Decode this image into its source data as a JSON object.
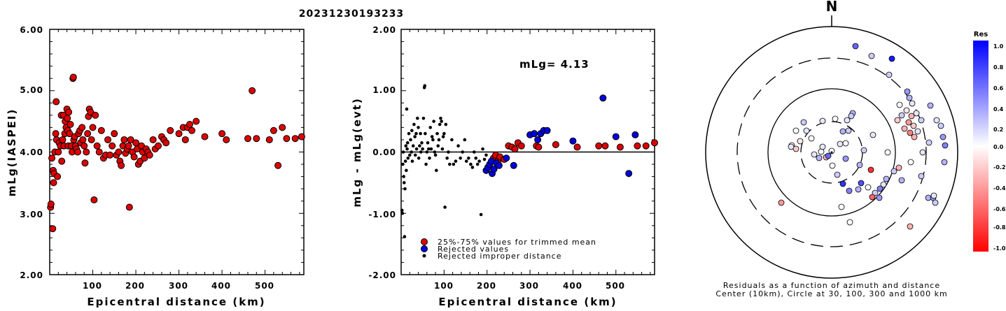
{
  "title": "20231230193233",
  "charts": {
    "left": {
      "type": "scatter",
      "ylabel": "mLg(IASPEI)",
      "xlabel": "Epicentral distance (km)",
      "xlim": [
        0,
        590
      ],
      "ylim": [
        2.0,
        6.0
      ],
      "xticks": [
        "100",
        "200",
        "300",
        "400",
        "500"
      ],
      "yticks": [
        "2.00",
        "3.00",
        "4.00",
        "5.00",
        "6.00"
      ]
    },
    "middle": {
      "type": "scatter",
      "ylabel": "mLg - mLg(evt)",
      "xlabel": "Epicentral distance (km)",
      "xlim": [
        0,
        590
      ],
      "ylim": [
        -2.0,
        2.0
      ],
      "xticks": [
        "100",
        "200",
        "300",
        "400",
        "500"
      ],
      "yticks": [
        "-2.00",
        "-1.00",
        "0.00",
        "1.00",
        "2.00"
      ],
      "annotation": "mLg= 4.13",
      "legend": [
        "25%-75% values for trimmed mean",
        "Rejected values",
        "Rejected improper distance"
      ]
    },
    "polar": {
      "north": "N",
      "caption1": "Residuals as a function of azimuth and distance",
      "caption2": "Center (10km), Circle at 30, 100, 300 and 1000 km"
    },
    "colorbar": {
      "title": "Res",
      "ticks": [
        "1.0",
        "0.8",
        "0.6",
        "0.4",
        "0.2",
        "0.0",
        "-0.2",
        "-0.4",
        "-0.6",
        "-0.8",
        "-1.0"
      ]
    }
  },
  "chart_data": [
    {
      "type": "scatter",
      "title": "20231230193233",
      "xlabel": "Epicentral distance (km)",
      "ylabel": "mLg(IASPEI)",
      "series": [
        {
          "name": "25%-75% values for trimmed mean",
          "color": "#dd0000",
          "points": [
            [
              2,
              3.1
            ],
            [
              3,
              3.15
            ],
            [
              5,
              3.9
            ],
            [
              7,
              2.75
            ],
            [
              8,
              3.7
            ],
            [
              9,
              3.5
            ],
            [
              10,
              3.65
            ],
            [
              12,
              4.0
            ],
            [
              14,
              4.3
            ],
            [
              15,
              4.82
            ],
            [
              16,
              4.2
            ],
            [
              18,
              3.6
            ],
            [
              20,
              4.0
            ],
            [
              22,
              4.15
            ],
            [
              25,
              4.1
            ],
            [
              27,
              4.6
            ],
            [
              28,
              3.85
            ],
            [
              30,
              4.2
            ],
            [
              32,
              4.6
            ],
            [
              33,
              4.1
            ],
            [
              35,
              4.3
            ],
            [
              36,
              4.5
            ],
            [
              38,
              4.4
            ],
            [
              40,
              4.7
            ],
            [
              41,
              4.55
            ],
            [
              42,
              4.35
            ],
            [
              43,
              4.1
            ],
            [
              44,
              4.65
            ],
            [
              46,
              4.3
            ],
            [
              48,
              4.45
            ],
            [
              50,
              4.1
            ],
            [
              52,
              4.0
            ],
            [
              54,
              5.2
            ],
            [
              55,
              5.22
            ],
            [
              56,
              4.2
            ],
            [
              58,
              4.25
            ],
            [
              60,
              4.1
            ],
            [
              62,
              4.05
            ],
            [
              65,
              4.0
            ],
            [
              67,
              4.3
            ],
            [
              70,
              4.35
            ],
            [
              72,
              4.15
            ],
            [
              75,
              4.4
            ],
            [
              77,
              4.2
            ],
            [
              80,
              4.1
            ],
            [
              82,
              3.82
            ],
            [
              85,
              4.0
            ],
            [
              88,
              4.3
            ],
            [
              90,
              4.58
            ],
            [
              92,
              4.7
            ],
            [
              95,
              4.65
            ],
            [
              97,
              4.2
            ],
            [
              100,
              4.4
            ],
            [
              103,
              3.22
            ],
            [
              106,
              4.6
            ],
            [
              110,
              4.1
            ],
            [
              115,
              4.0
            ],
            [
              120,
              4.35
            ],
            [
              125,
              3.9
            ],
            [
              130,
              3.95
            ],
            [
              135,
              4.2
            ],
            [
              140,
              3.95
            ],
            [
              145,
              4.1
            ],
            [
              150,
              4.3
            ],
            [
              155,
              3.95
            ],
            [
              160,
              4.0
            ],
            [
              163,
              3.85
            ],
            [
              166,
              3.78
            ],
            [
              170,
              4.1
            ],
            [
              173,
              4.2
            ],
            [
              176,
              3.98
            ],
            [
              180,
              4.05
            ],
            [
              183,
              4.1
            ],
            [
              185,
              3.1
            ],
            [
              188,
              4.2
            ],
            [
              192,
              4.0
            ],
            [
              196,
              3.92
            ],
            [
              200,
              4.15
            ],
            [
              203,
              4.05
            ],
            [
              206,
              3.8
            ],
            [
              210,
              3.85
            ],
            [
              213,
              4.1
            ],
            [
              216,
              4.0
            ],
            [
              220,
              3.9
            ],
            [
              224,
              4.05
            ],
            [
              228,
              4.0
            ],
            [
              232,
              3.95
            ],
            [
              240,
              4.2
            ],
            [
              245,
              4.05
            ],
            [
              252,
              4.1
            ],
            [
              260,
              4.25
            ],
            [
              265,
              4.2
            ],
            [
              270,
              4.15
            ],
            [
              280,
              4.35
            ],
            [
              300,
              4.3
            ],
            [
              310,
              4.4
            ],
            [
              315,
              4.2
            ],
            [
              320,
              4.4
            ],
            [
              325,
              4.45
            ],
            [
              330,
              4.35
            ],
            [
              340,
              4.5
            ],
            [
              360,
              4.25
            ],
            [
              400,
              4.3
            ],
            [
              410,
              4.2
            ],
            [
              460,
              4.22
            ],
            [
              470,
              5.0
            ],
            [
              480,
              4.22
            ],
            [
              510,
              4.2
            ],
            [
              520,
              4.35
            ],
            [
              530,
              3.78
            ],
            [
              540,
              4.4
            ],
            [
              550,
              4.22
            ],
            [
              570,
              4.22
            ],
            [
              585,
              4.25
            ]
          ]
        }
      ]
    },
    {
      "type": "scatter",
      "xlabel": "Epicentral distance (km)",
      "ylabel": "mLg - mLg(evt)",
      "series": [
        {
          "name": "25%-75% values for trimmed mean",
          "color": "#dd0000",
          "points": [
            [
              215,
              -0.1
            ],
            [
              220,
              -0.05
            ],
            [
              225,
              -0.15
            ],
            [
              230,
              -0.08
            ],
            [
              240,
              -0.12
            ],
            [
              250,
              0.1
            ],
            [
              258,
              0.08
            ],
            [
              265,
              0.05
            ],
            [
              272,
              0.15
            ],
            [
              280,
              0.1
            ],
            [
              315,
              0.1
            ],
            [
              320,
              0.08
            ],
            [
              360,
              0.12
            ],
            [
              410,
              0.08
            ],
            [
              460,
              0.1
            ],
            [
              475,
              0.1
            ],
            [
              510,
              0.08
            ],
            [
              550,
              0.1
            ],
            [
              570,
              0.1
            ],
            [
              590,
              0.15
            ]
          ]
        },
        {
          "name": "Rejected values",
          "color": "#0000dd",
          "points": [
            [
              198,
              -0.3
            ],
            [
              202,
              -0.25
            ],
            [
              206,
              -0.2
            ],
            [
              210,
              -0.15
            ],
            [
              212,
              -0.35
            ],
            [
              216,
              -0.28
            ],
            [
              222,
              -0.18
            ],
            [
              228,
              -0.22
            ],
            [
              245,
              -0.1
            ],
            [
              262,
              -0.22
            ],
            [
              300,
              0.28
            ],
            [
              310,
              0.3
            ],
            [
              318,
              0.2
            ],
            [
              325,
              0.3
            ],
            [
              332,
              0.35
            ],
            [
              340,
              0.35
            ],
            [
              400,
              0.18
            ],
            [
              470,
              0.88
            ],
            [
              500,
              0.25
            ],
            [
              530,
              -0.35
            ],
            [
              545,
              0.28
            ]
          ]
        },
        {
          "name": "Rejected improper distance",
          "color": "#000000",
          "points": [
            [
              2,
              -0.95
            ],
            [
              3,
              -1.0
            ],
            [
              4,
              -0.2
            ],
            [
              5,
              0.0
            ],
            [
              6,
              -0.4
            ],
            [
              7,
              -0.5
            ],
            [
              8,
              -1.38
            ],
            [
              9,
              -0.6
            ],
            [
              10,
              -0.15
            ],
            [
              11,
              0.1
            ],
            [
              12,
              -0.3
            ],
            [
              13,
              0.7
            ],
            [
              14,
              0.05
            ],
            [
              15,
              0.15
            ],
            [
              16,
              -0.1
            ],
            [
              18,
              0.3
            ],
            [
              20,
              -0.05
            ],
            [
              22,
              0.2
            ],
            [
              24,
              0.0
            ],
            [
              25,
              0.35
            ],
            [
              26,
              -0.15
            ],
            [
              28,
              0.1
            ],
            [
              30,
              0.45
            ],
            [
              32,
              0.25
            ],
            [
              33,
              -0.05
            ],
            [
              35,
              0.3
            ],
            [
              36,
              0.05
            ],
            [
              38,
              0.55
            ],
            [
              40,
              0.4
            ],
            [
              41,
              -0.1
            ],
            [
              43,
              0.1
            ],
            [
              45,
              0.3
            ],
            [
              46,
              0.0
            ],
            [
              48,
              0.15
            ],
            [
              50,
              0.05
            ],
            [
              52,
              0.55
            ],
            [
              54,
              1.05
            ],
            [
              55,
              1.08
            ],
            [
              56,
              0.3
            ],
            [
              58,
              -0.2
            ],
            [
              60,
              0.0
            ],
            [
              62,
              0.15
            ],
            [
              64,
              0.05
            ],
            [
              66,
              -0.1
            ],
            [
              68,
              0.4
            ],
            [
              70,
              0.05
            ],
            [
              72,
              0.25
            ],
            [
              74,
              0.2
            ],
            [
              76,
              0.5
            ],
            [
              78,
              0.0
            ],
            [
              80,
              -0.05
            ],
            [
              82,
              -0.3
            ],
            [
              84,
              0.3
            ],
            [
              86,
              0.1
            ],
            [
              88,
              0.2
            ],
            [
              90,
              0.45
            ],
            [
              92,
              0.55
            ],
            [
              94,
              0.5
            ],
            [
              96,
              0.05
            ],
            [
              98,
              0.25
            ],
            [
              100,
              0.3
            ],
            [
              102,
              -0.9
            ],
            [
              104,
              0.45
            ],
            [
              107,
              -0.1
            ],
            [
              110,
              0.0
            ],
            [
              113,
              -0.2
            ],
            [
              118,
              0.2
            ],
            [
              122,
              -0.2
            ],
            [
              127,
              -0.15
            ],
            [
              133,
              0.1
            ],
            [
              138,
              -0.1
            ],
            [
              143,
              0.0
            ],
            [
              148,
              0.2
            ],
            [
              152,
              -0.15
            ],
            [
              157,
              -0.1
            ],
            [
              162,
              -0.2
            ],
            [
              166,
              -0.25
            ],
            [
              170,
              0.0
            ],
            [
              174,
              -0.1
            ],
            [
              178,
              -0.2
            ],
            [
              182,
              -0.15
            ],
            [
              186,
              -1.02
            ],
            [
              190,
              0.05
            ],
            [
              194,
              -0.12
            ],
            [
              198,
              -0.05
            ]
          ]
        }
      ],
      "annotation": "mLg= 4.13"
    }
  ]
}
